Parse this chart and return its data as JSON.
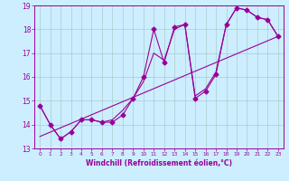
{
  "title": "",
  "xlabel": "Windchill (Refroidissement éolien,°C)",
  "ylabel": "",
  "background_color": "#cceeff",
  "grid_color": "#aacccc",
  "line_color": "#990099",
  "xlim": [
    -0.5,
    23.5
  ],
  "ylim": [
    13.0,
    19.0
  ],
  "xticks": [
    0,
    1,
    2,
    3,
    4,
    5,
    6,
    7,
    8,
    9,
    10,
    11,
    12,
    13,
    14,
    15,
    16,
    17,
    18,
    19,
    20,
    21,
    22,
    23
  ],
  "yticks": [
    13,
    14,
    15,
    16,
    17,
    18,
    19
  ],
  "series": [
    {
      "x": [
        0,
        1,
        2,
        3,
        4,
        5,
        6,
        7,
        8,
        9,
        10,
        11,
        12,
        13,
        14,
        15,
        16,
        17,
        18,
        19,
        20,
        21,
        22,
        23
      ],
      "y": [
        14.8,
        14.0,
        13.4,
        13.7,
        14.2,
        14.2,
        14.1,
        14.1,
        14.4,
        15.1,
        16.0,
        18.0,
        16.6,
        18.1,
        18.2,
        15.1,
        15.4,
        16.1,
        18.2,
        18.9,
        18.8,
        18.5,
        18.4,
        17.7
      ],
      "marker": "D",
      "markersize": 2.5,
      "linewidth": 0.8,
      "has_marker": true
    },
    {
      "x": [
        0,
        23
      ],
      "y": [
        13.5,
        17.7
      ],
      "marker": null,
      "markersize": 0,
      "linewidth": 0.8,
      "has_marker": false
    },
    {
      "x": [
        0,
        1,
        2,
        3,
        4,
        5,
        6,
        7,
        8,
        9,
        10,
        11,
        12,
        13,
        14,
        15,
        16,
        17,
        18,
        19,
        20,
        21,
        22,
        23
      ],
      "y": [
        14.8,
        14.0,
        13.4,
        13.7,
        14.2,
        14.2,
        14.1,
        14.2,
        14.6,
        15.1,
        15.8,
        17.0,
        16.7,
        18.0,
        18.2,
        15.2,
        15.5,
        16.2,
        18.2,
        18.9,
        18.8,
        18.5,
        18.4,
        17.7
      ],
      "marker": null,
      "markersize": 0,
      "linewidth": 0.8,
      "has_marker": false
    }
  ]
}
